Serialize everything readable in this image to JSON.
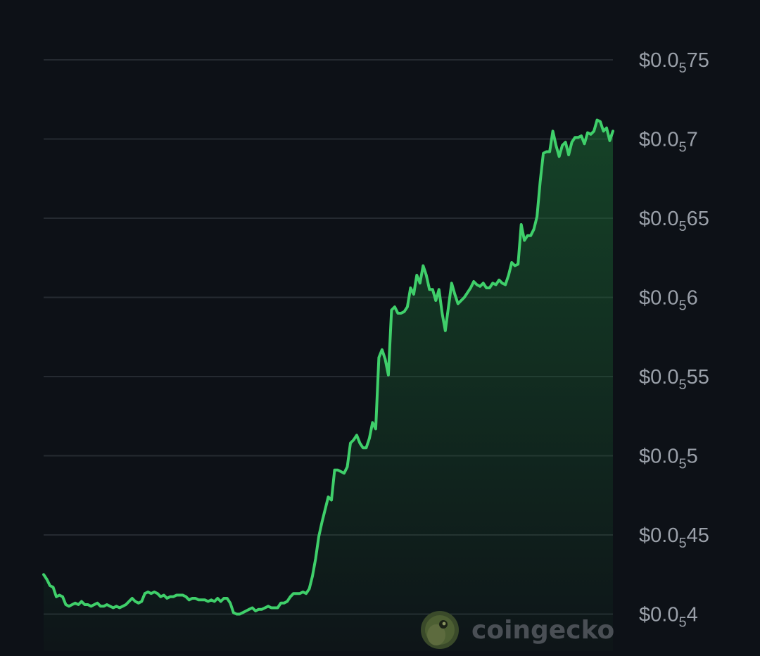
{
  "chart_data": {
    "type": "area",
    "title": "",
    "xlabel": "",
    "ylabel": "",
    "grid": true,
    "ylim": [
      3.9e-06,
      7.7e-06
    ],
    "y_axis_position": "right",
    "y_ticks": [
      {
        "value": 7.5e-06,
        "prefix": "$0.0",
        "sub": "5",
        "suffix": "75"
      },
      {
        "value": 7e-06,
        "prefix": "$0.0",
        "sub": "5",
        "suffix": "7"
      },
      {
        "value": 6.5e-06,
        "prefix": "$0.0",
        "sub": "5",
        "suffix": "65"
      },
      {
        "value": 6e-06,
        "prefix": "$0.0",
        "sub": "5",
        "suffix": "6"
      },
      {
        "value": 5.5e-06,
        "prefix": "$0.0",
        "sub": "5",
        "suffix": "55"
      },
      {
        "value": 5e-06,
        "prefix": "$0.0",
        "sub": "5",
        "suffix": "5"
      },
      {
        "value": 4.5e-06,
        "prefix": "$0.0",
        "sub": "5",
        "suffix": "45"
      },
      {
        "value": 4e-06,
        "prefix": "$0.0",
        "sub": "5",
        "suffix": "4"
      }
    ],
    "line_color": "#3fcf6a",
    "fill_color": "#1c6b35",
    "series": [
      {
        "values": [
          4.25e-06,
          4.22e-06,
          4.18e-06,
          4.17e-06,
          4.11e-06,
          4.12e-06,
          4.11e-06,
          4.06e-06,
          4.05e-06,
          4.06e-06,
          4.07e-06,
          4.06e-06,
          4.08e-06,
          4.06e-06,
          4.06e-06,
          4.05e-06,
          4.06e-06,
          4.07e-06,
          4.05e-06,
          4.05e-06,
          4.06e-06,
          4.05e-06,
          4.04e-06,
          4.05e-06,
          4.04e-06,
          4.05e-06,
          4.06e-06,
          4.08e-06,
          4.1e-06,
          4.08e-06,
          4.07e-06,
          4.08e-06,
          4.13e-06,
          4.14e-06,
          4.13e-06,
          4.14e-06,
          4.13e-06,
          4.11e-06,
          4.12e-06,
          4.1e-06,
          4.11e-06,
          4.11e-06,
          4.12e-06,
          4.12e-06,
          4.12e-06,
          4.11e-06,
          4.09e-06,
          4.1e-06,
          4.1e-06,
          4.09e-06,
          4.09e-06,
          4.09e-06,
          4.08e-06,
          4.09e-06,
          4.08e-06,
          4.1e-06,
          4.08e-06,
          4.1e-06,
          4.1e-06,
          4.07e-06,
          4.01e-06,
          4e-06,
          4e-06,
          4.01e-06,
          4.02e-06,
          4.03e-06,
          4.04e-06,
          4.02e-06,
          4.03e-06,
          4.03e-06,
          4.04e-06,
          4.05e-06,
          4.04e-06,
          4.04e-06,
          4.04e-06,
          4.07e-06,
          4.07e-06,
          4.08e-06,
          4.11e-06,
          4.13e-06,
          4.13e-06,
          4.13e-06,
          4.14e-06,
          4.13e-06,
          4.16e-06,
          4.24e-06,
          4.35e-06,
          4.49e-06,
          4.58e-06,
          4.66e-06,
          4.74e-06,
          4.72e-06,
          4.91e-06,
          4.91e-06,
          4.9e-06,
          4.89e-06,
          4.93e-06,
          5.08e-06,
          5.1e-06,
          5.13e-06,
          5.08e-06,
          5.05e-06,
          5.05e-06,
          5.11e-06,
          5.21e-06,
          5.17e-06,
          5.62e-06,
          5.67e-06,
          5.61e-06,
          5.51e-06,
          5.92e-06,
          5.94e-06,
          5.9e-06,
          5.9e-06,
          5.91e-06,
          5.94e-06,
          6.06e-06,
          6.02e-06,
          6.14e-06,
          6.09e-06,
          6.2e-06,
          6.14e-06,
          6.05e-06,
          6.05e-06,
          5.98e-06,
          6.05e-06,
          5.9e-06,
          5.79e-06,
          5.94e-06,
          6.09e-06,
          6.02e-06,
          5.96e-06,
          5.98e-06,
          6e-06,
          6.03e-06,
          6.06e-06,
          6.1e-06,
          6.08e-06,
          6.07e-06,
          6.09e-06,
          6.06e-06,
          6.06e-06,
          6.09e-06,
          6.08e-06,
          6.11e-06,
          6.09e-06,
          6.08e-06,
          6.14e-06,
          6.22e-06,
          6.2e-06,
          6.21e-06,
          6.46e-06,
          6.36e-06,
          6.39e-06,
          6.39e-06,
          6.43e-06,
          6.51e-06,
          6.73e-06,
          6.91e-06,
          6.92e-06,
          6.92e-06,
          7.05e-06,
          6.96e-06,
          6.89e-06,
          6.96e-06,
          6.98e-06,
          6.9e-06,
          6.98e-06,
          7.01e-06,
          7.01e-06,
          7.02e-06,
          6.97e-06,
          7.04e-06,
          7.03e-06,
          7.05e-06,
          7.12e-06,
          7.11e-06,
          7.05e-06,
          7.07e-06,
          6.99e-06,
          7.05e-06
        ]
      }
    ]
  },
  "watermark": {
    "text": "coingecko",
    "icon": "gecko-icon"
  }
}
